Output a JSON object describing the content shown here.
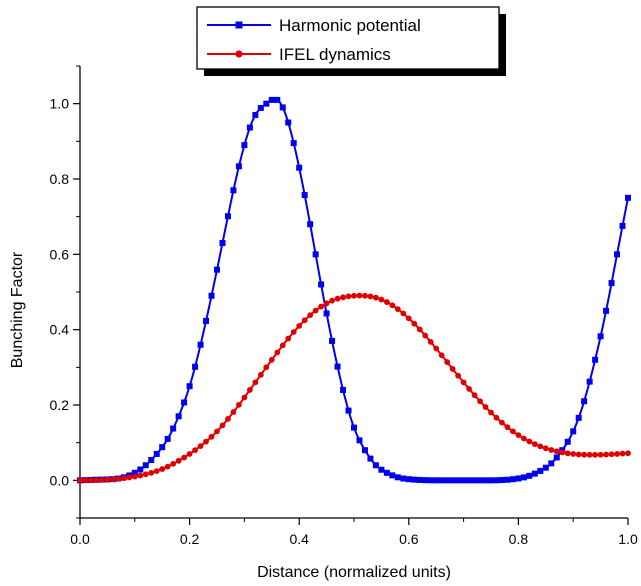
{
  "chart_data": {
    "type": "line",
    "xlabel": "Distance (normalized units)",
    "ylabel": "Bunching Factor",
    "xlim": [
      0.0,
      1.0
    ],
    "ylim": [
      -0.1,
      1.1
    ],
    "x_ticks": [
      0.0,
      0.2,
      0.4,
      0.6,
      0.8,
      1.0
    ],
    "x_tick_labels": [
      "0.0",
      "0.2",
      "0.4",
      "0.6",
      "0.8",
      "1.0"
    ],
    "y_ticks": [
      0.0,
      0.2,
      0.4,
      0.6,
      0.8,
      1.0
    ],
    "y_tick_labels": [
      "0.0",
      "0.2",
      "0.4",
      "0.6",
      "0.8",
      "1.0"
    ],
    "grid": false,
    "legend_position": "top-center",
    "series": [
      {
        "name": "Harmonic potential",
        "color": "#0000ee",
        "marker": "square",
        "x": [
          0.0,
          0.04,
          0.08,
          0.1,
          0.12,
          0.14,
          0.16,
          0.18,
          0.2,
          0.22,
          0.24,
          0.26,
          0.28,
          0.3,
          0.32,
          0.34,
          0.35,
          0.36,
          0.37,
          0.38,
          0.4,
          0.42,
          0.44,
          0.46,
          0.48,
          0.5,
          0.52,
          0.54,
          0.56,
          0.58,
          0.6,
          0.62,
          0.65,
          0.7,
          0.75,
          0.8,
          0.82,
          0.84,
          0.86,
          0.88,
          0.9,
          0.92,
          0.94,
          0.96,
          0.98,
          1.0
        ],
        "y": [
          0.0,
          0.002,
          0.008,
          0.02,
          0.04,
          0.07,
          0.11,
          0.17,
          0.25,
          0.36,
          0.49,
          0.63,
          0.77,
          0.89,
          0.97,
          1.0,
          1.01,
          1.01,
          0.99,
          0.95,
          0.83,
          0.68,
          0.52,
          0.37,
          0.24,
          0.14,
          0.08,
          0.04,
          0.02,
          0.008,
          0.003,
          0.001,
          0.0,
          0.0,
          0.0,
          0.005,
          0.012,
          0.025,
          0.045,
          0.08,
          0.13,
          0.21,
          0.32,
          0.45,
          0.6,
          0.75
        ]
      },
      {
        "name": "IFEL dynamics",
        "color": "#e00000",
        "marker": "circle",
        "x": [
          0.0,
          0.05,
          0.1,
          0.15,
          0.2,
          0.25,
          0.3,
          0.35,
          0.4,
          0.45,
          0.5,
          0.52,
          0.55,
          0.6,
          0.65,
          0.7,
          0.75,
          0.8,
          0.85,
          0.9,
          0.95,
          1.0
        ],
        "y": [
          0.0,
          0.002,
          0.01,
          0.03,
          0.07,
          0.13,
          0.22,
          0.32,
          0.41,
          0.47,
          0.49,
          0.49,
          0.48,
          0.43,
          0.35,
          0.26,
          0.18,
          0.12,
          0.085,
          0.07,
          0.068,
          0.072
        ]
      }
    ]
  }
}
